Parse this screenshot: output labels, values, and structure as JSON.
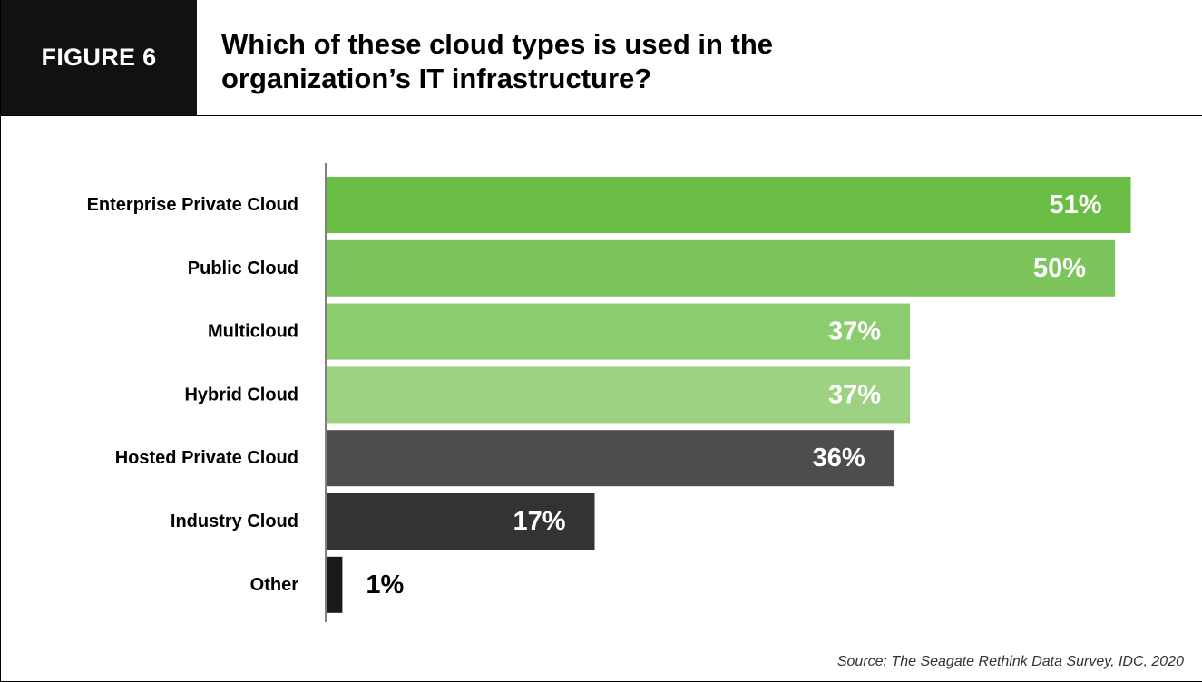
{
  "header": {
    "figure_label": "FIGURE 6",
    "title_line1": "Which of these cloud types is used in the",
    "title_line2": "organization’s IT infrastructure?"
  },
  "source": "Source: The Seagate Rethink Data Survey, IDC, 2020",
  "chart_data": {
    "type": "bar",
    "orientation": "horizontal",
    "categories": [
      "Enterprise Private Cloud",
      "Public Cloud",
      "Multicloud",
      "Hybrid Cloud",
      "Hosted Private Cloud",
      "Industry Cloud",
      "Other"
    ],
    "values": [
      51,
      50,
      37,
      37,
      36,
      17,
      1
    ],
    "value_labels": [
      "51%",
      "50%",
      "37%",
      "37%",
      "36%",
      "17%",
      "1%"
    ],
    "colors": [
      "#6abe45",
      "#7cc55d",
      "#8acc6e",
      "#9dd283",
      "#4d4d4d",
      "#333333",
      "#1a1a1a"
    ],
    "xlim": [
      0,
      52.7
    ],
    "grid": false
  }
}
